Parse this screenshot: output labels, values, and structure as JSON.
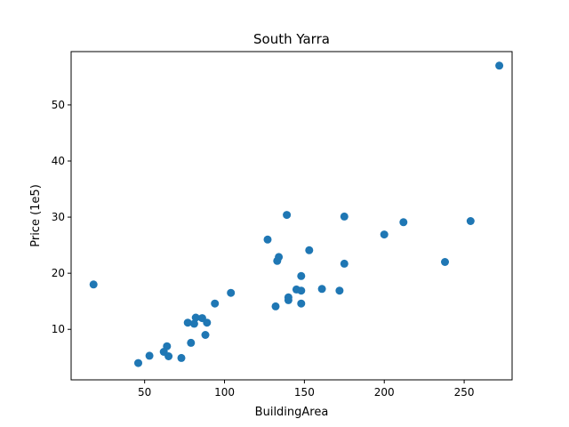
{
  "chart_data": {
    "type": "scatter",
    "title": "South Yarra",
    "xlabel": "BuildingArea",
    "ylabel": "Price (1e5)",
    "xlim": [
      4,
      280
    ],
    "ylim": [
      1,
      59.5
    ],
    "xticks": [
      50,
      100,
      150,
      200,
      250
    ],
    "yticks": [
      10,
      20,
      30,
      40,
      50
    ],
    "grid": false,
    "marker_color": "#1f77b4",
    "points": [
      {
        "x": 18,
        "y": 18.0
      },
      {
        "x": 46,
        "y": 4.0
      },
      {
        "x": 53,
        "y": 5.3
      },
      {
        "x": 62,
        "y": 6.0
      },
      {
        "x": 64,
        "y": 7.0
      },
      {
        "x": 65,
        "y": 5.2
      },
      {
        "x": 73,
        "y": 4.9
      },
      {
        "x": 77,
        "y": 11.2
      },
      {
        "x": 79,
        "y": 7.6
      },
      {
        "x": 81,
        "y": 11.0
      },
      {
        "x": 82,
        "y": 12.1
      },
      {
        "x": 86,
        "y": 12.0
      },
      {
        "x": 88,
        "y": 9.0
      },
      {
        "x": 89,
        "y": 11.2
      },
      {
        "x": 94,
        "y": 14.6
      },
      {
        "x": 104,
        "y": 16.5
      },
      {
        "x": 127,
        "y": 26.0
      },
      {
        "x": 132,
        "y": 14.1
      },
      {
        "x": 133,
        "y": 22.2
      },
      {
        "x": 134,
        "y": 22.9
      },
      {
        "x": 139,
        "y": 30.4
      },
      {
        "x": 140,
        "y": 15.2
      },
      {
        "x": 140,
        "y": 15.7
      },
      {
        "x": 145,
        "y": 17.1
      },
      {
        "x": 148,
        "y": 19.5
      },
      {
        "x": 148,
        "y": 16.9
      },
      {
        "x": 148,
        "y": 14.6
      },
      {
        "x": 153,
        "y": 24.1
      },
      {
        "x": 161,
        "y": 17.2
      },
      {
        "x": 172,
        "y": 16.9
      },
      {
        "x": 175,
        "y": 30.1
      },
      {
        "x": 175,
        "y": 21.7
      },
      {
        "x": 200,
        "y": 26.9
      },
      {
        "x": 212,
        "y": 29.1
      },
      {
        "x": 238,
        "y": 22.0
      },
      {
        "x": 254,
        "y": 29.3
      },
      {
        "x": 272,
        "y": 57.0
      }
    ]
  }
}
